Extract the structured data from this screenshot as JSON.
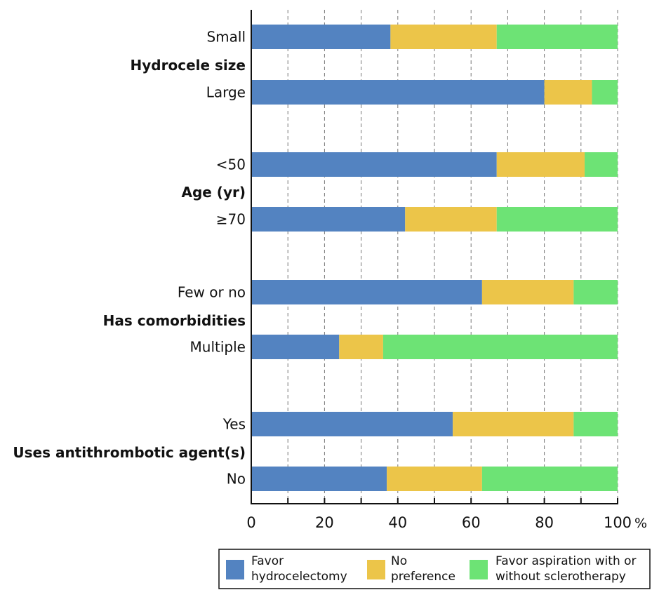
{
  "chart_data": {
    "type": "bar",
    "orientation": "horizontal",
    "stacked": true,
    "groups": [
      {
        "label": "Hydrocele size",
        "categories": [
          "Small",
          "Large"
        ]
      },
      {
        "label": "Age (yr)",
        "categories": [
          "<50",
          "≥70"
        ]
      },
      {
        "label": "Has comorbidities",
        "categories": [
          "Few or no",
          "Multiple"
        ]
      },
      {
        "label": "Uses antithrombotic agent(s)",
        "categories": [
          "Yes",
          "No"
        ]
      }
    ],
    "categories": [
      "Small",
      "Large",
      "<50",
      "≥70",
      "Few or no",
      "Multiple",
      "Yes",
      "No"
    ],
    "series": [
      {
        "name": "Favor hydrocelectomy",
        "color": "#5383c1",
        "values": [
          38,
          80,
          67,
          42,
          63,
          24,
          55,
          37
        ]
      },
      {
        "name": "No preference",
        "color": "#ecc549",
        "values": [
          29,
          13,
          24,
          25,
          25,
          12,
          33,
          26
        ]
      },
      {
        "name": "Favor aspiration with or without sclerotherapy",
        "color": "#6de375",
        "values": [
          33,
          7,
          9,
          33,
          12,
          64,
          12,
          37
        ]
      }
    ],
    "xlim": [
      0,
      100
    ],
    "xticks": [
      "0",
      "20",
      "40",
      "60",
      "80",
      "100"
    ],
    "x_unit": "%",
    "grid": "vertical dashed every 10",
    "legend": {
      "placement": "bottom",
      "entries": [
        {
          "lines": [
            "Favor",
            "hydrocelectomy"
          ]
        },
        {
          "lines": [
            "No",
            "preference"
          ]
        },
        {
          "lines": [
            "Favor aspiration with or",
            "without sclerotherapy"
          ]
        }
      ]
    }
  }
}
